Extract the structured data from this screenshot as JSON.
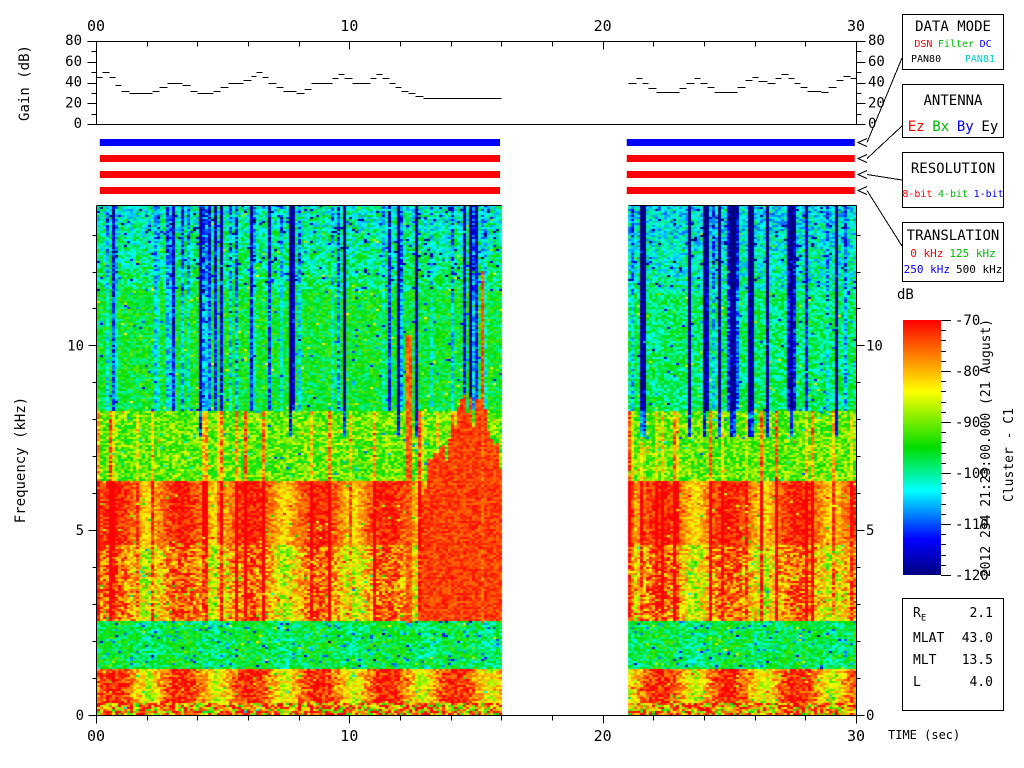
{
  "labels": {
    "gain_ylabel": "Gain (dB)",
    "freq_ylabel": "Frequency (kHz)",
    "time_xlabel": "TIME (sec)",
    "colorbar_label": "dB",
    "datetime_vertical": "2012 234 21:23:00.000 (21 August)",
    "spacecraft_vertical": "Cluster - C1"
  },
  "axes": {
    "time": {
      "range": [
        0,
        30
      ],
      "minor_step": 2,
      "major": [
        {
          "t": 0,
          "label": "00"
        },
        {
          "t": 10,
          "label": "10"
        },
        {
          "t": 20,
          "label": "20"
        },
        {
          "t": 30,
          "label": "30"
        }
      ]
    },
    "gain": {
      "range": [
        0,
        80
      ],
      "minor_step": 10,
      "major": [
        {
          "v": 0,
          "label": "0"
        },
        {
          "v": 20,
          "label": "20"
        },
        {
          "v": 40,
          "label": "40"
        },
        {
          "v": 60,
          "label": "60"
        },
        {
          "v": 80,
          "label": "80"
        }
      ]
    },
    "freq": {
      "range": [
        0,
        13.8
      ],
      "minor_step": 1,
      "major": [
        {
          "v": 0,
          "label": "0"
        },
        {
          "v": 5,
          "label": "5"
        },
        {
          "v": 10,
          "label": "10"
        }
      ]
    }
  },
  "status_bars": [
    {
      "name": "data-mode-bar",
      "color": "#0000ff"
    },
    {
      "name": "antenna-bar",
      "color": "#ff0000"
    },
    {
      "name": "resolution-bar",
      "color": "#ff0000"
    },
    {
      "name": "translation-bar",
      "color": "#ff0000"
    }
  ],
  "bar_segments_sec": [
    [
      0.15,
      15.95
    ],
    [
      20.95,
      29.95
    ]
  ],
  "boxes": {
    "data_mode": {
      "title": "DATA MODE",
      "spread_rows": [
        1
      ],
      "items": [
        {
          "label": "DSN",
          "color": "#ff0000",
          "row": 0
        },
        {
          "label": "Filter",
          "color": "#00bb00",
          "row": 0
        },
        {
          "label": "DC",
          "color": "#0000ff",
          "row": 0
        },
        {
          "label": "PAN80",
          "color": "#000000",
          "row": 1
        },
        {
          "label": "PAN81",
          "color": "#00cccc",
          "row": 1
        }
      ]
    },
    "antenna": {
      "title": "ANTENNA",
      "spread_rows": [],
      "items": [
        {
          "label": "Ez",
          "color": "#ff0000",
          "row": 0
        },
        {
          "label": "Bx",
          "color": "#00bb00",
          "row": 0
        },
        {
          "label": "By",
          "color": "#0000ff",
          "row": 0
        },
        {
          "label": "Ey",
          "color": "#000000",
          "row": 0
        }
      ]
    },
    "resolution": {
      "title": "RESOLUTION",
      "spread_rows": [],
      "items": [
        {
          "label": "8-bit",
          "color": "#ff0000",
          "row": 0
        },
        {
          "label": "4-bit",
          "color": "#00bb00",
          "row": 0
        },
        {
          "label": "1-bit",
          "color": "#0000ff",
          "row": 0
        }
      ]
    },
    "translation": {
      "title": "TRANSLATION",
      "spread_rows": [],
      "items": [
        {
          "label": "0 kHz",
          "color": "#ff0000",
          "row": 0
        },
        {
          "label": "125 kHz",
          "color": "#00bb00",
          "row": 0
        },
        {
          "label": "250 kHz",
          "color": "#0000ff",
          "row": 1
        },
        {
          "label": "500 kHz",
          "color": "#000000",
          "row": 1
        }
      ]
    }
  },
  "ephemeris": {
    "rows": [
      {
        "label": "R",
        "sub": "E",
        "value": "2.1"
      },
      {
        "label": "MLAT",
        "sub": "",
        "value": "43.0"
      },
      {
        "label": "MLT",
        "sub": "",
        "value": "13.5"
      },
      {
        "label": "L",
        "sub": "",
        "value": "4.0"
      }
    ]
  },
  "chart_data": {
    "gain_plot": {
      "type": "line",
      "ylabel": "Gain (dB)",
      "xlabel": "TIME (sec)",
      "xlim": [
        0,
        30
      ],
      "ylim": [
        0,
        80
      ],
      "style": "step-dashes",
      "segments": [
        {
          "end": 16,
          "steps": [
            [
              0,
              45
            ],
            [
              0.25,
              50
            ],
            [
              0.5,
              45
            ],
            [
              0.75,
              38
            ],
            [
              1.0,
              32
            ],
            [
              1.3,
              30
            ],
            [
              2.2,
              32
            ],
            [
              2.5,
              36
            ],
            [
              2.8,
              40
            ],
            [
              3.4,
              38
            ],
            [
              3.7,
              32
            ],
            [
              4.0,
              30
            ],
            [
              4.6,
              32
            ],
            [
              4.9,
              36
            ],
            [
              5.2,
              40
            ],
            [
              5.8,
              42
            ],
            [
              6.1,
              46
            ],
            [
              6.3,
              50
            ],
            [
              6.55,
              45
            ],
            [
              6.8,
              40
            ],
            [
              7.1,
              36
            ],
            [
              7.4,
              32
            ],
            [
              7.9,
              30
            ],
            [
              8.2,
              34
            ],
            [
              8.5,
              40
            ],
            [
              9.0,
              40
            ],
            [
              9.3,
              44
            ],
            [
              9.55,
              48
            ],
            [
              9.8,
              44
            ],
            [
              10.1,
              40
            ],
            [
              10.5,
              40
            ],
            [
              10.8,
              44
            ],
            [
              11.05,
              48
            ],
            [
              11.3,
              44
            ],
            [
              11.55,
              40
            ],
            [
              11.8,
              36
            ],
            [
              12.05,
              32
            ],
            [
              12.3,
              30
            ],
            [
              12.6,
              27
            ],
            [
              12.9,
              25
            ],
            [
              16,
              25
            ]
          ]
        },
        {
          "end": 30,
          "steps": [
            [
              21,
              40
            ],
            [
              21.3,
              44
            ],
            [
              21.55,
              40
            ],
            [
              21.8,
              35
            ],
            [
              22.1,
              31
            ],
            [
              22.7,
              31
            ],
            [
              23.0,
              35
            ],
            [
              23.3,
              40
            ],
            [
              23.6,
              44
            ],
            [
              23.85,
              40
            ],
            [
              24.1,
              36
            ],
            [
              24.4,
              31
            ],
            [
              25.0,
              31
            ],
            [
              25.3,
              36
            ],
            [
              25.6,
              42
            ],
            [
              25.9,
              45
            ],
            [
              26.15,
              41
            ],
            [
              26.5,
              40
            ],
            [
              26.8,
              44
            ],
            [
              27.05,
              48
            ],
            [
              27.3,
              44
            ],
            [
              27.55,
              40
            ],
            [
              27.8,
              36
            ],
            [
              28.05,
              32
            ],
            [
              28.6,
              31
            ],
            [
              28.9,
              36
            ],
            [
              29.2,
              42
            ],
            [
              29.5,
              46
            ],
            [
              29.75,
              44
            ],
            [
              30,
              44
            ]
          ]
        }
      ]
    },
    "spectrogram": {
      "type": "heatmap",
      "xlabel": "TIME (sec)",
      "ylabel": "Frequency (kHz)",
      "xlim": [
        0,
        30
      ],
      "ylim": [
        0,
        13.8
      ],
      "time_segments": [
        [
          0,
          16
        ],
        [
          21,
          30
        ]
      ],
      "colorbar": {
        "label": "dB",
        "min": -120,
        "max": -70,
        "ticks": [
          -70,
          -80,
          -90,
          -100,
          -110,
          -120
        ],
        "minor_step": 2
      },
      "colormap_stops": [
        [
          0,
          "#000080"
        ],
        [
          0.14,
          "#0000ff"
        ],
        [
          0.33,
          "#00ffff"
        ],
        [
          0.5,
          "#00dd00"
        ],
        [
          0.72,
          "#ffff00"
        ],
        [
          0.85,
          "#ff8800"
        ],
        [
          1,
          "#ff0000"
        ]
      ],
      "blob_period_sec": 2.7,
      "blob_phase_center": 0.7,
      "bands": [
        {
          "f": [
            0,
            0.35
          ],
          "base": 0.8,
          "noise": 0.3
        },
        {
          "f": [
            0.35,
            1.25
          ],
          "base": 0.97,
          "blob": 0.3,
          "noise": 0.12
        },
        {
          "f": [
            1.25,
            2.55
          ],
          "base": 0.48,
          "blob": 0.06,
          "noise": 0.1,
          "cool_speckle": 0.06
        },
        {
          "f": [
            2.55,
            4.6
          ],
          "base": 0.9,
          "blob": 0.25,
          "noise": 0.15,
          "warm_streaks": 1
        },
        {
          "f": [
            4.6,
            6.35
          ],
          "base": 0.97,
          "blob": 0.22,
          "noise": 0.08,
          "warm_streaks": 1
        },
        {
          "f": [
            6.35,
            8.2
          ],
          "base": 0.58,
          "noise": 0.12,
          "warm_streaks": 1
        },
        {
          "f": [
            8.2,
            11.5
          ],
          "base": 0.48,
          "noise": 0.1,
          "cool_streaks": 1
        },
        {
          "f": [
            11.5,
            13.8
          ],
          "base": 0.44,
          "top_delta": -0.08,
          "noise": 0.12,
          "cool_streaks": 1,
          "navy_speckle": 0.03
        }
      ],
      "features": {
        "funnel": {
          "t": [
            12.8,
            16
          ],
          "f_base": 2.55,
          "f_top_base": 6.3,
          "f_top_peak": 8.3,
          "peak_t": 14.8,
          "sigma": 1.1
        },
        "red_columns": [
          {
            "t": 12.35,
            "width": 0.18,
            "f": [
              2.5,
              10.3
            ]
          },
          {
            "t": 15.25,
            "width": 0.2,
            "f": [
              2.5,
              12.0
            ]
          }
        ],
        "navy_columns": [
          4.15,
          7.7,
          11.9,
          21.6,
          25.85,
          27.5
        ],
        "seg2_cool_extra": 0.05
      }
    }
  }
}
